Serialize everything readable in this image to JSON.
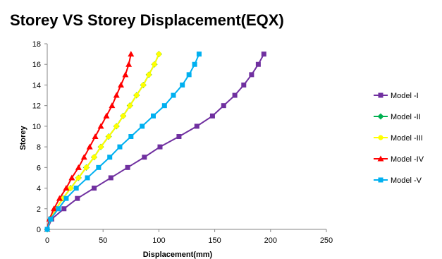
{
  "chart_data": {
    "type": "line",
    "title": "Storey VS Storey Displacement(EQX)",
    "xlabel": "Displacement(mm)",
    "ylabel": "Storey",
    "xlim": [
      0,
      250
    ],
    "ylim": [
      0,
      18
    ],
    "xticks": [
      0,
      50,
      100,
      150,
      200,
      250
    ],
    "yticks": [
      0,
      2,
      4,
      6,
      8,
      10,
      12,
      14,
      16,
      18
    ],
    "grid": false,
    "legend": "right",
    "y": [
      0,
      1,
      2,
      3,
      4,
      5,
      6,
      7,
      8,
      9,
      10,
      11,
      12,
      13,
      14,
      15,
      16,
      17
    ],
    "series": [
      {
        "name": "Model -I",
        "color": "#7030a0",
        "marker": "square",
        "x": [
          0,
          4,
          15,
          27,
          42,
          57,
          72,
          87,
          101,
          118,
          134,
          148,
          158,
          168,
          176,
          183,
          189,
          194
        ]
      },
      {
        "name": "Model -II",
        "color": "#00b050",
        "marker": "diamond",
        "x": [
          0,
          3,
          8,
          14,
          21,
          28,
          35,
          42,
          48,
          55,
          62,
          68,
          74,
          80,
          86,
          91,
          96,
          100
        ]
      },
      {
        "name": "Model -III",
        "color": "#ffff00",
        "marker": "circle",
        "x": [
          0,
          3,
          8,
          14,
          21,
          28,
          35,
          42,
          48,
          55,
          62,
          68,
          74,
          80,
          86,
          91,
          96,
          100
        ]
      },
      {
        "name": "Model -IV",
        "color": "#ff0000",
        "marker": "triangle",
        "x": [
          0,
          2,
          6,
          11,
          17,
          22,
          28,
          33,
          38,
          43,
          48,
          53,
          58,
          62,
          66,
          70,
          73,
          75
        ]
      },
      {
        "name": "Model -V",
        "color": "#00b0f0",
        "marker": "square",
        "x": [
          0,
          3,
          10,
          17,
          26,
          36,
          46,
          56,
          65,
          75,
          85,
          95,
          105,
          113,
          121,
          127,
          132,
          136
        ]
      }
    ]
  }
}
